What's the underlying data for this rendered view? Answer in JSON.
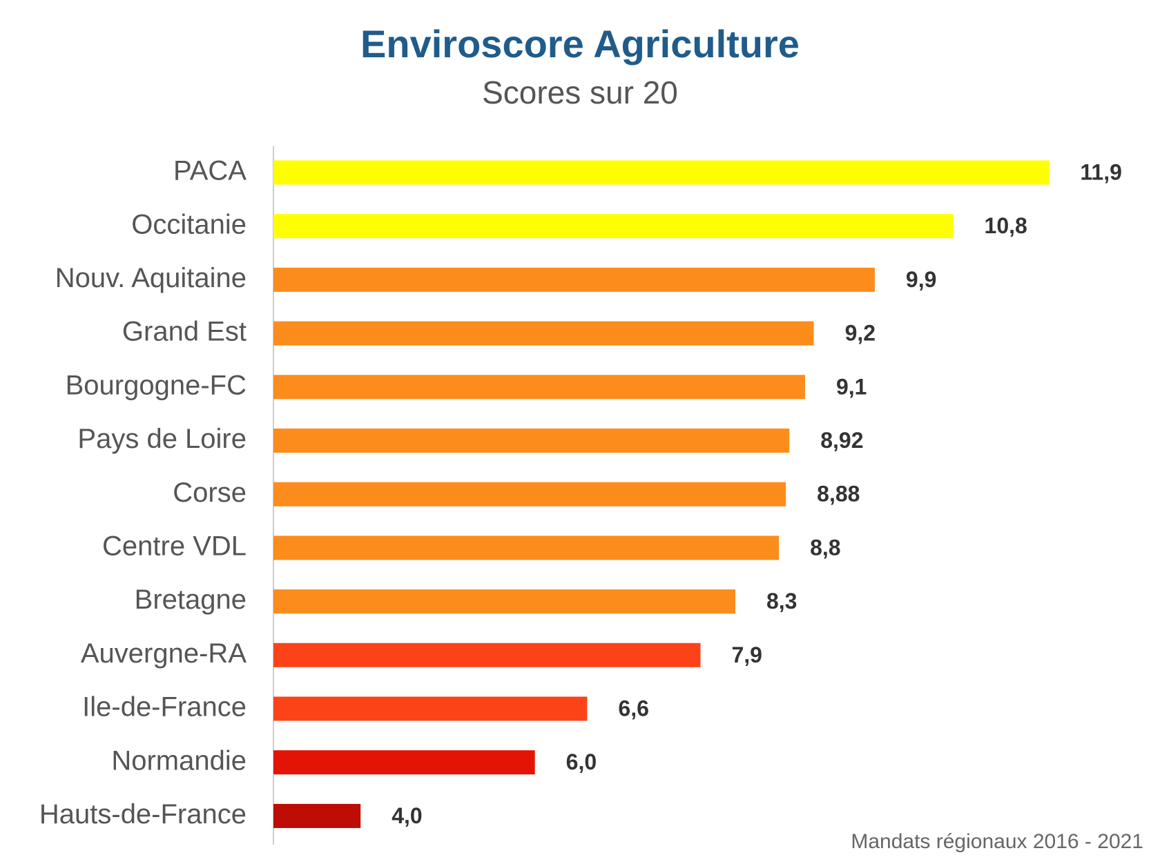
{
  "chart_data": {
    "type": "hbar",
    "title": "Enviroscore Agriculture",
    "subtitle": "Scores sur 20",
    "categories": [
      "PACA",
      "Occitanie",
      "Nouv. Aquitaine",
      "Grand Est",
      "Bourgogne-FC",
      "Pays de Loire",
      "Corse",
      "Centre VDL",
      "Bretagne",
      "Auvergne-RA",
      "Ile-de-France",
      "Normandie",
      "Hauts-de-France"
    ],
    "values": [
      11.9,
      10.8,
      9.9,
      9.2,
      9.1,
      8.92,
      8.88,
      8.8,
      8.3,
      7.9,
      6.6,
      6.0,
      4.0
    ],
    "value_labels": [
      "11,9",
      "10,8",
      "9,9",
      "9,2",
      "9,1",
      "8,92",
      "8,88",
      "8,8",
      "8,3",
      "7,9",
      "6,6",
      "6,0",
      "4,0"
    ],
    "colors": [
      "#ffff00",
      "#ffff00",
      "#fc8c1c",
      "#fc8c1c",
      "#fc8c1c",
      "#fc8c1c",
      "#fc8c1c",
      "#fc8c1c",
      "#fc8c1c",
      "#fc4318",
      "#fc4318",
      "#e31405",
      "#bd0d05"
    ],
    "xlim": [
      3,
      12
    ],
    "source": "Mandats régionaux 2016 - 2021"
  }
}
